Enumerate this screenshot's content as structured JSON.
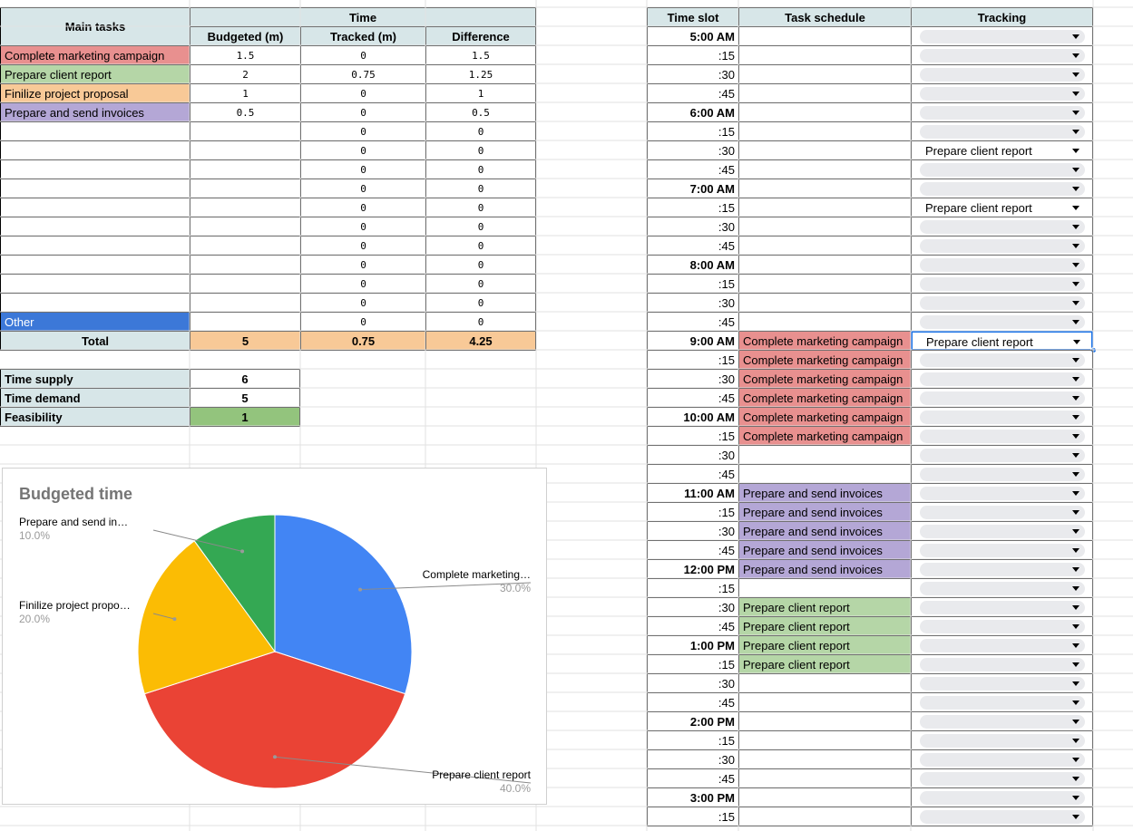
{
  "colors": {
    "header_bg": "#d7e6e8",
    "marketing": "#e8908f",
    "client_report": "#b5d6a7",
    "proposal": "#f8c997",
    "invoices": "#b4a7d6",
    "other": "#3c78d8",
    "total_bg": "#f8c997",
    "feasible": "#93c47d",
    "pie_blue": "#4285f4",
    "pie_red": "#ea4335",
    "pie_yellow": "#fbbc04",
    "pie_green": "#34a853"
  },
  "main_table": {
    "header_main": "Main tasks",
    "header_time": "Time",
    "col_budgeted": "Budgeted (m)",
    "col_tracked": "Tracked (m)",
    "col_difference": "Difference",
    "rows": [
      {
        "task": "Complete marketing campaign",
        "color": "marketing",
        "budgeted": "1.5",
        "tracked": "0",
        "difference": "1.5"
      },
      {
        "task": "Prepare client report",
        "color": "client_report",
        "budgeted": "2",
        "tracked": "0.75",
        "difference": "1.25"
      },
      {
        "task": "Finilize project proposal",
        "color": "proposal",
        "budgeted": "1",
        "tracked": "0",
        "difference": "1"
      },
      {
        "task": "Prepare and send invoices",
        "color": "invoices",
        "budgeted": "0.5",
        "tracked": "0",
        "difference": "0.5"
      },
      {
        "task": "",
        "budgeted": "",
        "tracked": "0",
        "difference": "0"
      },
      {
        "task": "",
        "budgeted": "",
        "tracked": "0",
        "difference": "0"
      },
      {
        "task": "",
        "budgeted": "",
        "tracked": "0",
        "difference": "0"
      },
      {
        "task": "",
        "budgeted": "",
        "tracked": "0",
        "difference": "0"
      },
      {
        "task": "",
        "budgeted": "",
        "tracked": "0",
        "difference": "0"
      },
      {
        "task": "",
        "budgeted": "",
        "tracked": "0",
        "difference": "0"
      },
      {
        "task": "",
        "budgeted": "",
        "tracked": "0",
        "difference": "0"
      },
      {
        "task": "",
        "budgeted": "",
        "tracked": "0",
        "difference": "0"
      },
      {
        "task": "",
        "budgeted": "",
        "tracked": "0",
        "difference": "0"
      },
      {
        "task": "",
        "budgeted": "",
        "tracked": "0",
        "difference": "0"
      },
      {
        "task": "Other",
        "color": "other",
        "budgeted": "",
        "tracked": "0",
        "difference": "0"
      }
    ],
    "total_label": "Total",
    "total_budgeted": "5",
    "total_tracked": "0.75",
    "total_difference": "4.25"
  },
  "summary": [
    {
      "label": "Time supply",
      "value": "6"
    },
    {
      "label": "Time demand",
      "value": "5"
    },
    {
      "label": "Feasibility",
      "value": "1"
    }
  ],
  "schedule": {
    "col_time": "Time slot",
    "col_task": "Task schedule",
    "col_tracking": "Tracking",
    "rows": [
      {
        "time": "5:00 AM",
        "task": "",
        "tracking": ""
      },
      {
        "time": ":15",
        "task": "",
        "tracking": ""
      },
      {
        "time": ":30",
        "task": "",
        "tracking": ""
      },
      {
        "time": ":45",
        "task": "",
        "tracking": ""
      },
      {
        "time": "6:00 AM",
        "task": "",
        "tracking": ""
      },
      {
        "time": ":15",
        "task": "",
        "tracking": ""
      },
      {
        "time": ":30",
        "task": "",
        "tracking": "Prepare client report"
      },
      {
        "time": ":45",
        "task": "",
        "tracking": ""
      },
      {
        "time": "7:00 AM",
        "task": "",
        "tracking": ""
      },
      {
        "time": ":15",
        "task": "",
        "tracking": "Prepare client report"
      },
      {
        "time": ":30",
        "task": "",
        "tracking": ""
      },
      {
        "time": ":45",
        "task": "",
        "tracking": ""
      },
      {
        "time": "8:00 AM",
        "task": "",
        "tracking": ""
      },
      {
        "time": ":15",
        "task": "",
        "tracking": ""
      },
      {
        "time": ":30",
        "task": "",
        "tracking": ""
      },
      {
        "time": ":45",
        "task": "",
        "tracking": ""
      },
      {
        "time": "9:00 AM",
        "task": "Complete marketing campaign",
        "tracking": "Prepare client report"
      },
      {
        "time": ":15",
        "task": "Complete marketing campaign",
        "tracking": ""
      },
      {
        "time": ":30",
        "task": "Complete marketing campaign",
        "tracking": ""
      },
      {
        "time": ":45",
        "task": "Complete marketing campaign",
        "tracking": ""
      },
      {
        "time": "10:00 AM",
        "task": "Complete marketing campaign",
        "tracking": ""
      },
      {
        "time": ":15",
        "task": "Complete marketing campaign",
        "tracking": ""
      },
      {
        "time": ":30",
        "task": "",
        "tracking": ""
      },
      {
        "time": ":45",
        "task": "",
        "tracking": ""
      },
      {
        "time": "11:00 AM",
        "task": "Prepare and send invoices",
        "tracking": ""
      },
      {
        "time": ":15",
        "task": "Prepare and send invoices",
        "tracking": ""
      },
      {
        "time": ":30",
        "task": "Prepare and send invoices",
        "tracking": ""
      },
      {
        "time": ":45",
        "task": "Prepare and send invoices",
        "tracking": ""
      },
      {
        "time": "12:00 PM",
        "task": "Prepare and send invoices",
        "tracking": ""
      },
      {
        "time": ":15",
        "task": "",
        "tracking": ""
      },
      {
        "time": ":30",
        "task": "Prepare client report",
        "tracking": ""
      },
      {
        "time": ":45",
        "task": "Prepare client report",
        "tracking": ""
      },
      {
        "time": "1:00 PM",
        "task": "Prepare client report",
        "tracking": ""
      },
      {
        "time": ":15",
        "task": "Prepare client report",
        "tracking": ""
      },
      {
        "time": ":30",
        "task": "",
        "tracking": ""
      },
      {
        "time": ":45",
        "task": "",
        "tracking": ""
      },
      {
        "time": "2:00 PM",
        "task": "",
        "tracking": ""
      },
      {
        "time": ":15",
        "task": "",
        "tracking": ""
      },
      {
        "time": ":30",
        "task": "",
        "tracking": ""
      },
      {
        "time": ":45",
        "task": "",
        "tracking": ""
      },
      {
        "time": "3:00 PM",
        "task": "",
        "tracking": ""
      },
      {
        "time": ":15",
        "task": "",
        "tracking": ""
      }
    ],
    "selected_row": 16
  },
  "chart_data": {
    "type": "pie",
    "title": "Budgeted time",
    "slices": [
      {
        "label": "Complete marketing…",
        "value": 1.5,
        "pct": "30.0%",
        "color": "#4285f4"
      },
      {
        "label": "Prepare client report",
        "value": 2,
        "pct": "40.0%",
        "color": "#ea4335"
      },
      {
        "label": "Finilize project propo…",
        "value": 1,
        "pct": "20.0%",
        "color": "#fbbc04"
      },
      {
        "label": "Prepare and send in…",
        "value": 0.5,
        "pct": "10.0%",
        "color": "#34a853"
      }
    ],
    "legend": "labels"
  }
}
